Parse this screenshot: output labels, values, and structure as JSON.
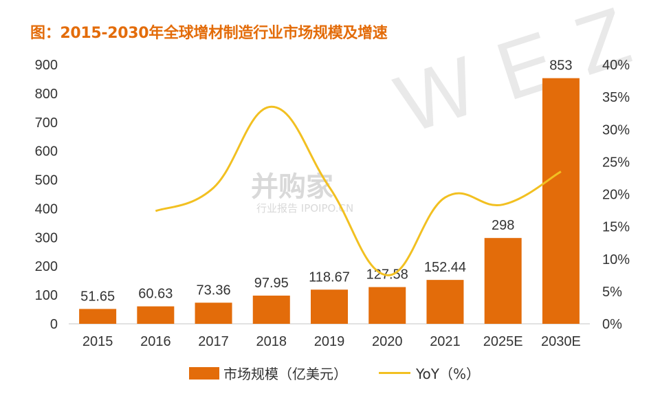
{
  "chart_data": {
    "type": "bar",
    "title": "图：2015-2030年全球增材制造行业市场规模及增速",
    "categories": [
      "2015",
      "2016",
      "2017",
      "2018",
      "2019",
      "2020",
      "2021",
      "2025E",
      "2030E"
    ],
    "series": [
      {
        "name": "市场规模（亿美元）",
        "type": "bar",
        "axis": "left",
        "values": [
          51.65,
          60.63,
          73.36,
          97.95,
          118.67,
          127.58,
          152.44,
          298,
          853
        ],
        "labels": [
          "51.65",
          "60.63",
          "73.36",
          "97.95",
          "118.67",
          "127.58",
          "152.44",
          "298",
          "853"
        ]
      },
      {
        "name": "YoY（%）",
        "type": "line",
        "axis": "right",
        "values": [
          null,
          17.4,
          21,
          33.5,
          21.1,
          7.5,
          19.5,
          18.4,
          23.5
        ]
      }
    ],
    "y_left": {
      "ylim": [
        0,
        900
      ],
      "ticks": [
        "0",
        "100",
        "200",
        "300",
        "400",
        "500",
        "600",
        "700",
        "800",
        "900"
      ]
    },
    "y_right": {
      "ylim": [
        0,
        40
      ],
      "ticks": [
        "0%",
        "5%",
        "10%",
        "15%",
        "20%",
        "25%",
        "30%",
        "35%",
        "40%"
      ]
    },
    "colors": {
      "bar": "#e36c0a",
      "line": "#f2c021",
      "title": "#e36c0a",
      "axis_text": "#333333"
    },
    "legend_position": "bottom",
    "grid": false
  },
  "watermark": {
    "letters": "WEZO",
    "logo": "并购家",
    "logo_sub": "行业报告 IPOIPO.CN"
  }
}
